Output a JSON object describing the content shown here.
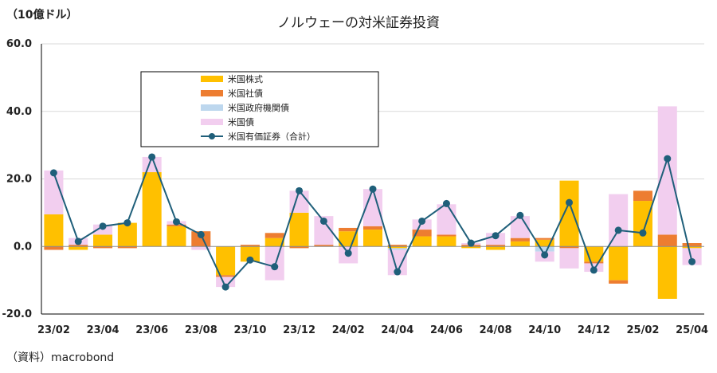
{
  "unit_label": "（10億ドル）",
  "source_label": "（資料）macrobond",
  "chart_data": {
    "type": "bar",
    "stacked": true,
    "title": "ノルウェーの対米証券投資",
    "ylim": [
      -20,
      60
    ],
    "yticks": [
      60,
      40,
      20,
      0,
      -20
    ],
    "ytick_labels": [
      "60.0",
      "40.0",
      "20.0",
      "0.0",
      "-20.0"
    ],
    "months": [
      "23/02",
      "23/03",
      "23/04",
      "23/05",
      "23/06",
      "23/07",
      "23/08",
      "23/09",
      "23/10",
      "23/11",
      "23/12",
      "24/01",
      "24/02",
      "24/03",
      "24/04",
      "24/05",
      "24/06",
      "24/07",
      "24/08",
      "24/09",
      "24/10",
      "24/11",
      "24/12",
      "25/01",
      "25/02",
      "25/03",
      "25/04"
    ],
    "xtick_labels": [
      "23/02",
      "23/04",
      "23/06",
      "23/08",
      "23/10",
      "23/12",
      "24/02",
      "24/04",
      "24/06",
      "24/08",
      "24/10",
      "24/12",
      "25/02",
      "25/04"
    ],
    "legend": [
      "米国株式",
      "米国社債",
      "米国政府機関債",
      "米国債",
      "米国有価証券（合計）"
    ],
    "colors": {
      "equity": "#FFC000",
      "corporate": "#ED7D31",
      "agency": "#BDD7EE",
      "treasury": "#F2CEEF",
      "total": "#1F5F7A"
    },
    "series": [
      {
        "name": "米国株式",
        "key": "equity",
        "values": [
          9.5,
          -1.0,
          3.5,
          7.0,
          22.0,
          6.0,
          0.0,
          -8.5,
          -4.5,
          2.5,
          10.0,
          0.0,
          4.5,
          5.0,
          -0.5,
          3.0,
          3.0,
          -0.5,
          -1.0,
          1.5,
          2.0,
          19.5,
          -4.5,
          -10.0,
          13.5,
          -15.5,
          -0.5
        ]
      },
      {
        "name": "米国社債",
        "key": "corporate",
        "values": [
          -1.0,
          0.5,
          -0.5,
          -0.5,
          0.0,
          0.5,
          4.5,
          -0.5,
          0.5,
          1.5,
          -0.5,
          0.5,
          1.0,
          1.0,
          0.5,
          2.0,
          0.5,
          0.5,
          0.5,
          1.0,
          0.5,
          -0.5,
          -0.5,
          -1.0,
          3.0,
          3.5,
          1.0
        ]
      },
      {
        "name": "米国政府機関債",
        "key": "agency",
        "values": [
          0.0,
          0.0,
          0.0,
          0.0,
          0.0,
          0.0,
          0.0,
          0.0,
          0.0,
          0.0,
          0.0,
          0.0,
          0.0,
          0.0,
          -0.5,
          0.0,
          0.0,
          0.0,
          0.0,
          0.0,
          -1.5,
          0.0,
          0.0,
          0.0,
          0.0,
          0.0,
          0.0
        ]
      },
      {
        "name": "米国債",
        "key": "treasury",
        "values": [
          13.0,
          2.0,
          3.0,
          0.0,
          4.5,
          1.0,
          -1.0,
          -3.0,
          0.0,
          -10.0,
          6.5,
          8.5,
          -5.0,
          11.0,
          -7.5,
          3.0,
          9.0,
          0.5,
          3.5,
          6.5,
          -3.0,
          -6.0,
          -2.5,
          15.5,
          0.0,
          38.0,
          -5.0
        ]
      },
      {
        "name": "米国有価証券（合計）",
        "key": "total",
        "values": [
          21.8,
          1.5,
          6.0,
          7.0,
          26.5,
          7.3,
          3.5,
          -12.0,
          -4.0,
          -6.0,
          16.5,
          7.5,
          -2.0,
          17.0,
          -7.5,
          7.5,
          12.7,
          1.0,
          3.2,
          9.2,
          -2.5,
          13.0,
          -7.0,
          4.8,
          4.0,
          26.0,
          -4.5
        ]
      }
    ]
  }
}
